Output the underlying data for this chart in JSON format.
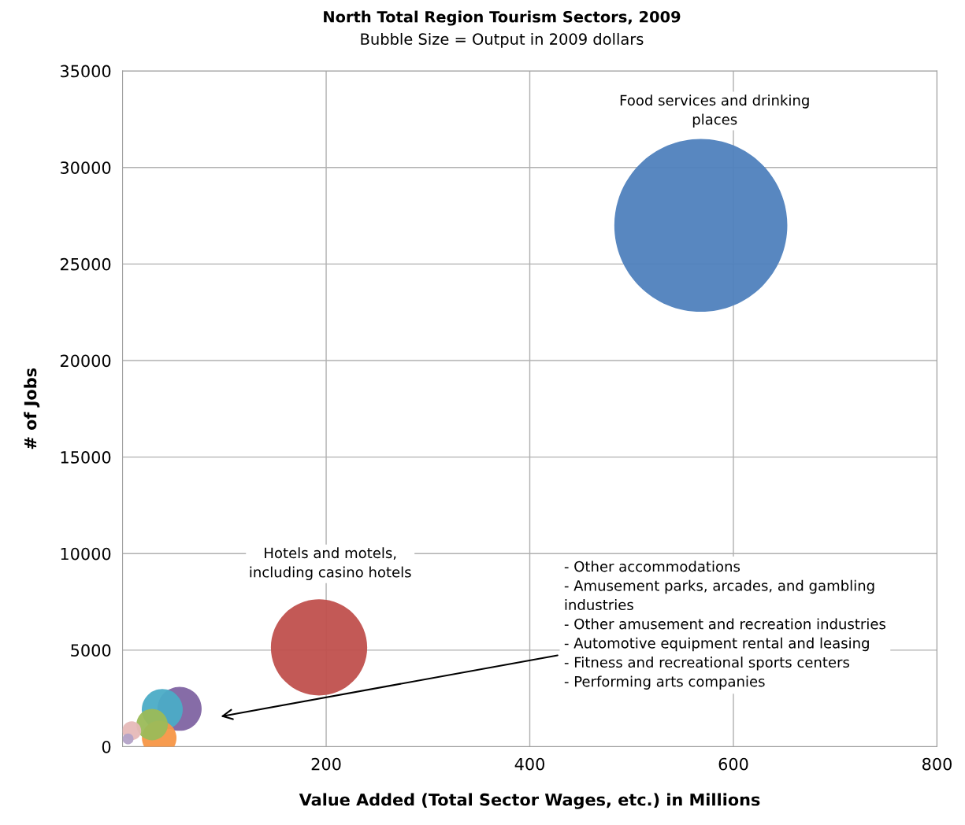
{
  "chart_data": {
    "type": "bubble",
    "title": "North Total Region Tourism Sectors, 2009",
    "subtitle": "Bubble Size = Output in 2009 dollars",
    "xlabel": "Value Added (Total Sector Wages, etc.) in Millions",
    "ylabel": "# of Jobs",
    "x": [
      568,
      193,
      56,
      29,
      39,
      36,
      9,
      5.4
    ],
    "values": [
      27000,
      5140,
      1960,
      1140,
      1920,
      450,
      820,
      400
    ],
    "sizes": [
      1,
      0.31,
      0.065,
      0.033,
      0.056,
      0.04,
      0.012,
      0.004
    ],
    "colors": [
      "#4f81bd",
      "#c0504d",
      "#8064a2",
      "#9bbb59",
      "#4bacc6",
      "#f79646",
      "#e6b9b8",
      "#b3a2c7"
    ],
    "xlim": [
      0,
      800
    ],
    "xticks": [
      200,
      400,
      600,
      800
    ],
    "ylim": [
      0,
      35000
    ],
    "yticks": [
      0,
      5000,
      10000,
      15000,
      20000,
      25000,
      30000,
      35000
    ],
    "grid": true,
    "legend": false,
    "annotations": [
      "Food services and drinking\nplaces",
      "Hotels and motels,\nincluding casino hotels",
      "- Other accommodations\n- Amusement parks, arcades, and gambling\nindustries\n- Other amusement and recreation industries\n- Automotive equipment rental and leasing\n- Fitness and recreational sports centers\n- Performing arts companies"
    ]
  }
}
